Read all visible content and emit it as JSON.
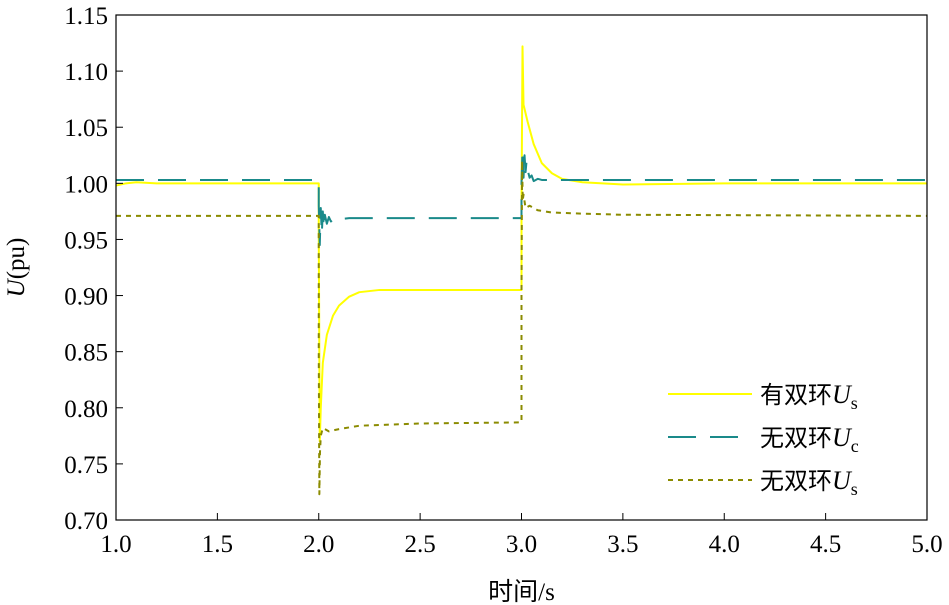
{
  "chart_data": {
    "type": "line",
    "title": "",
    "xlabel": "时间/s",
    "ylabel": {
      "symbol": "U",
      "unit": "(pu)"
    },
    "xlim": [
      1.0,
      5.0
    ],
    "ylim": [
      0.7,
      1.15
    ],
    "x_ticks": [
      "1.0",
      "1.5",
      "2.0",
      "2.5",
      "3.0",
      "3.5",
      "4.0",
      "4.5",
      "5.0"
    ],
    "y_ticks": [
      "0.70",
      "0.75",
      "0.80",
      "0.85",
      "0.90",
      "0.95",
      "1.00",
      "1.05",
      "1.10",
      "1.15"
    ],
    "grid": false,
    "legend_position": "bottom-right",
    "series": [
      {
        "name": "有双环U_s",
        "legend": {
          "text": "有双环",
          "symbol": "U",
          "sub": "s"
        },
        "color": "#ffff00",
        "dash": "solid",
        "x": [
          1.0,
          1.05,
          1.1,
          1.2,
          1.5,
          2.0,
          2.0,
          2.005,
          2.01,
          2.02,
          2.04,
          2.07,
          2.1,
          2.15,
          2.2,
          2.3,
          2.4,
          2.6,
          3.0,
          3.0,
          3.005,
          3.01,
          3.03,
          3.06,
          3.1,
          3.15,
          3.2,
          3.3,
          3.4,
          3.5,
          4.0,
          5.0
        ],
        "y": [
          0.998,
          1.0,
          1.001,
          1.0,
          1.0,
          1.0,
          0.956,
          0.77,
          0.8,
          0.84,
          0.865,
          0.882,
          0.891,
          0.899,
          0.903,
          0.905,
          0.905,
          0.905,
          0.905,
          0.98,
          1.122,
          1.07,
          1.055,
          1.035,
          1.018,
          1.009,
          1.004,
          1.001,
          1.0,
          0.999,
          1.0,
          1.0
        ]
      },
      {
        "name": "无双环U_c",
        "legend": {
          "text": "无双环",
          "symbol": "U",
          "sub": "c"
        },
        "color": "#1a8a8a",
        "dash": "long-dash",
        "x": [
          1.0,
          2.0,
          2.0,
          2.005,
          2.01,
          2.015,
          2.02,
          2.025,
          2.03,
          2.04,
          2.05,
          2.06,
          2.08,
          2.1,
          2.15,
          2.5,
          3.0,
          3.0,
          3.005,
          3.01,
          3.015,
          3.02,
          3.025,
          3.03,
          3.04,
          3.05,
          3.06,
          3.08,
          3.1,
          3.15,
          5.0
        ],
        "y": [
          1.003,
          1.003,
          0.98,
          0.945,
          0.978,
          0.955,
          0.975,
          0.96,
          0.972,
          0.964,
          0.97,
          0.966,
          0.969,
          0.968,
          0.969,
          0.969,
          0.969,
          1.0,
          1.03,
          1.005,
          1.025,
          1.01,
          1.02,
          1.012,
          1.005,
          1.007,
          1.002,
          1.004,
          1.003,
          1.003,
          1.003
        ]
      },
      {
        "name": "无双环U_s",
        "legend": {
          "text": "无双环",
          "symbol": "U",
          "sub": "s"
        },
        "color": "#8b8b00",
        "dash": "dotted",
        "x": [
          1.0,
          2.0,
          2.0,
          2.003,
          2.006,
          2.01,
          2.02,
          2.05,
          2.1,
          2.2,
          2.5,
          3.0,
          3.0,
          3.003,
          3.006,
          3.01,
          3.02,
          3.04,
          3.08,
          3.15,
          3.3,
          3.5,
          5.0
        ],
        "y": [
          0.971,
          0.971,
          0.85,
          0.723,
          0.76,
          0.775,
          0.782,
          0.779,
          0.781,
          0.784,
          0.786,
          0.787,
          0.9,
          1.02,
          0.985,
          0.99,
          0.978,
          0.98,
          0.976,
          0.974,
          0.973,
          0.972,
          0.971
        ]
      }
    ]
  }
}
